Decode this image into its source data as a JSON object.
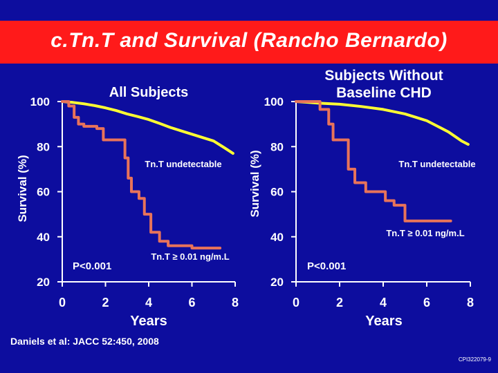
{
  "slide": {
    "title": "c.Tn.T and Survival (Rancho Bernardo)",
    "citation": "Daniels et al:  JACC 52:450, 2008",
    "code": "CPI322079-9"
  },
  "colors": {
    "background": "#0d0d9e",
    "title_bar": "#ff1a1a",
    "undetectable_line": "#ffff33",
    "elevated_line": "#e8735a",
    "text": "#ffffff"
  },
  "chart_data": [
    {
      "type": "line",
      "title": "All Subjects",
      "xlabel": "Years",
      "ylabel": "Survival (%)",
      "xlim": [
        0,
        8
      ],
      "ylim": [
        20,
        100
      ],
      "x_ticks": [
        "0",
        "2",
        "4",
        "6",
        "8"
      ],
      "y_ticks": [
        "100",
        "80",
        "60",
        "40",
        "20"
      ],
      "annotation": "P<0.001",
      "series": [
        {
          "name": "Tn.T undetectable",
          "step": false,
          "points": [
            [
              0,
              100
            ],
            [
              0.5,
              99.6
            ],
            [
              1,
              99
            ],
            [
              1.5,
              98.2
            ],
            [
              2,
              97.2
            ],
            [
              2.5,
              96
            ],
            [
              3,
              94.5
            ],
            [
              3.5,
              93.3
            ],
            [
              4,
              92
            ],
            [
              4.5,
              90.3
            ],
            [
              5,
              88.5
            ],
            [
              5.5,
              87
            ],
            [
              6,
              85.5
            ],
            [
              6.5,
              84
            ],
            [
              7,
              82.5
            ],
            [
              7.5,
              79.5
            ],
            [
              7.9,
              77
            ]
          ]
        },
        {
          "name": "Tn.T ≥ 0.01 ng/m.L",
          "step": true,
          "points": [
            [
              0,
              100
            ],
            [
              0.3,
              98
            ],
            [
              0.55,
              93
            ],
            [
              0.75,
              90
            ],
            [
              1,
              89
            ],
            [
              1.3,
              89
            ],
            [
              1.6,
              88
            ],
            [
              1.9,
              83
            ],
            [
              2.6,
              83
            ],
            [
              2.9,
              75
            ],
            [
              3.05,
              66
            ],
            [
              3.2,
              60
            ],
            [
              3.55,
              57
            ],
            [
              3.8,
              50
            ],
            [
              4.1,
              42
            ],
            [
              4.5,
              38
            ],
            [
              4.9,
              36
            ],
            [
              6,
              35
            ],
            [
              7.3,
              35
            ]
          ]
        }
      ]
    },
    {
      "type": "line",
      "title": "Subjects Without Baseline CHD",
      "xlabel": "Years",
      "ylabel": "Survival (%)",
      "xlim": [
        0,
        8
      ],
      "ylim": [
        20,
        100
      ],
      "x_ticks": [
        "0",
        "2",
        "4",
        "6",
        "8"
      ],
      "y_ticks": [
        "100",
        "80",
        "60",
        "40",
        "20"
      ],
      "annotation": "P<0.001",
      "series": [
        {
          "name": "Tn.T undetectable",
          "step": false,
          "points": [
            [
              0,
              100
            ],
            [
              0.5,
              99.7
            ],
            [
              1,
              99.3
            ],
            [
              2,
              98.8
            ],
            [
              3,
              97.8
            ],
            [
              4,
              96.5
            ],
            [
              5,
              94.5
            ],
            [
              5.5,
              93
            ],
            [
              6,
              91.5
            ],
            [
              6.5,
              89
            ],
            [
              7,
              86.5
            ],
            [
              7.3,
              84.5
            ],
            [
              7.6,
              82.5
            ],
            [
              7.9,
              81
            ]
          ]
        },
        {
          "name": "Tn.T ≥ 0.01 ng/m.L",
          "step": true,
          "points": [
            [
              0,
              100
            ],
            [
              1.1,
              100
            ],
            [
              1.1,
              96.5
            ],
            [
              1.5,
              90
            ],
            [
              1.7,
              83
            ],
            [
              2.1,
              83
            ],
            [
              2.4,
              70
            ],
            [
              2.7,
              64
            ],
            [
              3.2,
              60
            ],
            [
              4.1,
              56
            ],
            [
              4.5,
              54
            ],
            [
              5.0,
              47
            ],
            [
              5.4,
              47
            ],
            [
              7.1,
              47
            ]
          ]
        }
      ]
    }
  ]
}
